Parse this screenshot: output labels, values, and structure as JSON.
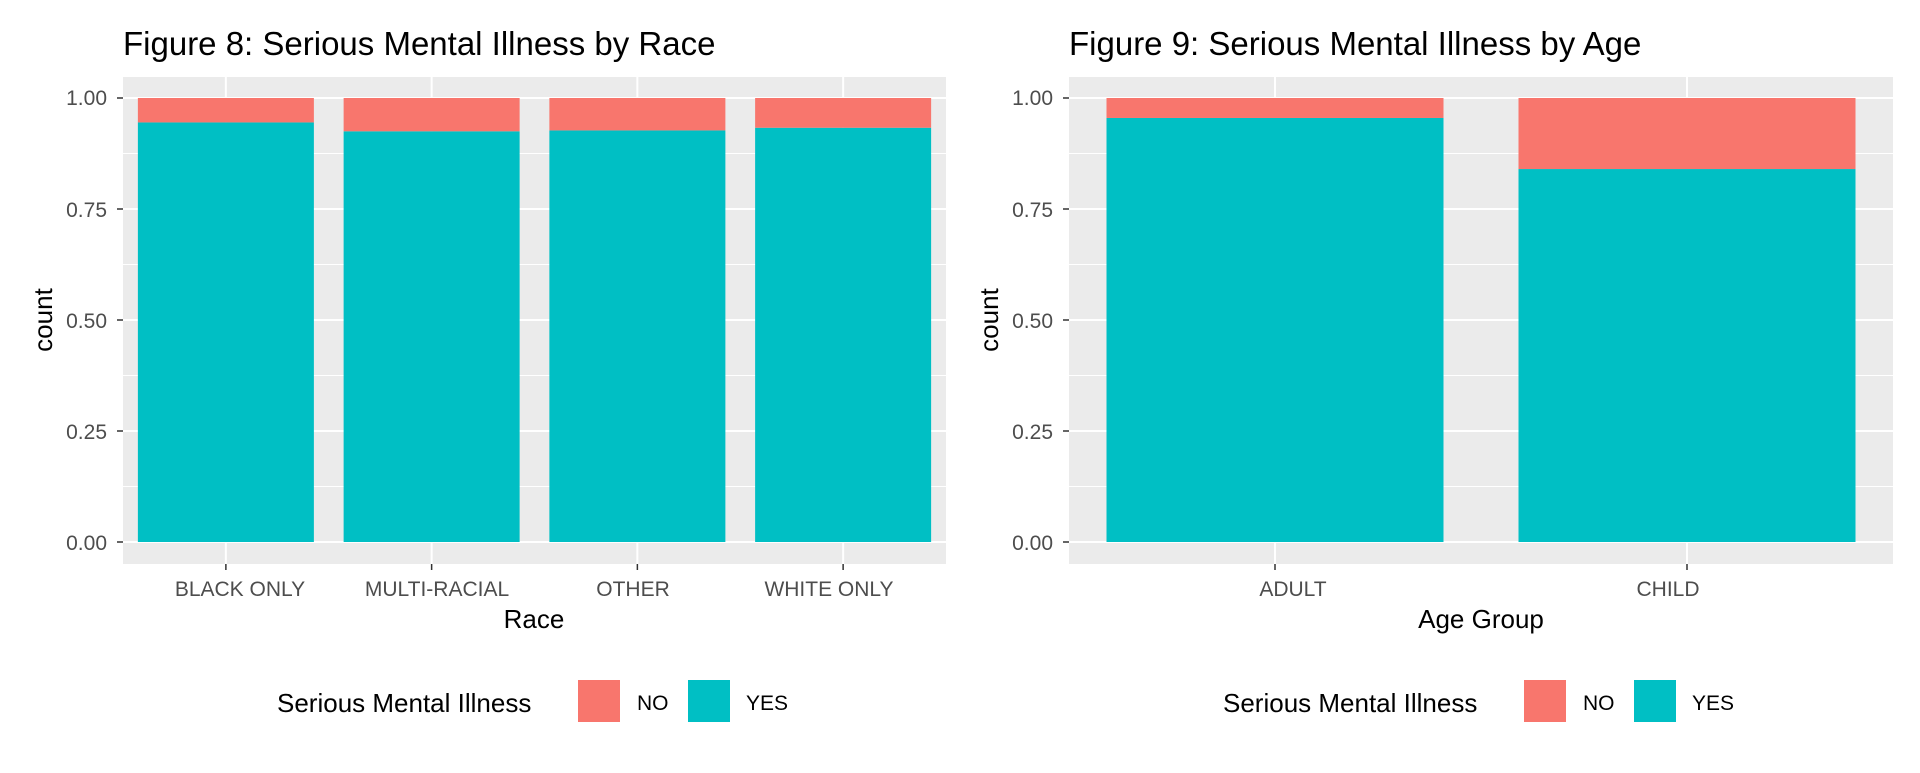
{
  "colors": {
    "panel_bg": "#EBEBEB",
    "grid": "#FFFFFF",
    "tick": "#333333",
    "tick_text": "#4D4D4D",
    "NO": "#F8766D",
    "YES": "#00BFC4"
  },
  "chart_data": [
    {
      "type": "bar",
      "stacked": true,
      "position": "fill",
      "title": "Figure 8: Serious Mental Illness by Race",
      "xlabel": "Race",
      "ylabel": "count",
      "ylim": [
        0,
        1
      ],
      "yticks": [
        "0.00",
        "0.25",
        "0.50",
        "0.75",
        "1.00"
      ],
      "grid": true,
      "categories": [
        "BLACK ONLY",
        "MULTI-RACIAL",
        "OTHER",
        "WHITE ONLY"
      ],
      "series": [
        {
          "name": "YES",
          "color": "#00BFC4",
          "values": [
            0.945,
            0.925,
            0.927,
            0.933
          ]
        },
        {
          "name": "NO",
          "color": "#F8766D",
          "values": [
            0.055,
            0.075,
            0.073,
            0.067
          ]
        }
      ],
      "legend": {
        "title": "Serious Mental Illness",
        "placement": "bottom",
        "entries": [
          {
            "label": "NO",
            "color": "#F8766D"
          },
          {
            "label": "YES",
            "color": "#00BFC4"
          }
        ]
      }
    },
    {
      "type": "bar",
      "stacked": true,
      "position": "fill",
      "title": "Figure 9: Serious Mental Illness by Age",
      "xlabel": "Age Group",
      "ylabel": "count",
      "ylim": [
        0,
        1
      ],
      "yticks": [
        "0.00",
        "0.25",
        "0.50",
        "0.75",
        "1.00"
      ],
      "grid": true,
      "categories": [
        "ADULT",
        "CHILD"
      ],
      "series": [
        {
          "name": "YES",
          "color": "#00BFC4",
          "values": [
            0.955,
            0.84
          ]
        },
        {
          "name": "NO",
          "color": "#F8766D",
          "values": [
            0.045,
            0.16
          ]
        }
      ],
      "legend": {
        "title": "Serious Mental Illness",
        "placement": "bottom",
        "entries": [
          {
            "label": "NO",
            "color": "#F8766D"
          },
          {
            "label": "YES",
            "color": "#00BFC4"
          }
        ]
      }
    }
  ]
}
